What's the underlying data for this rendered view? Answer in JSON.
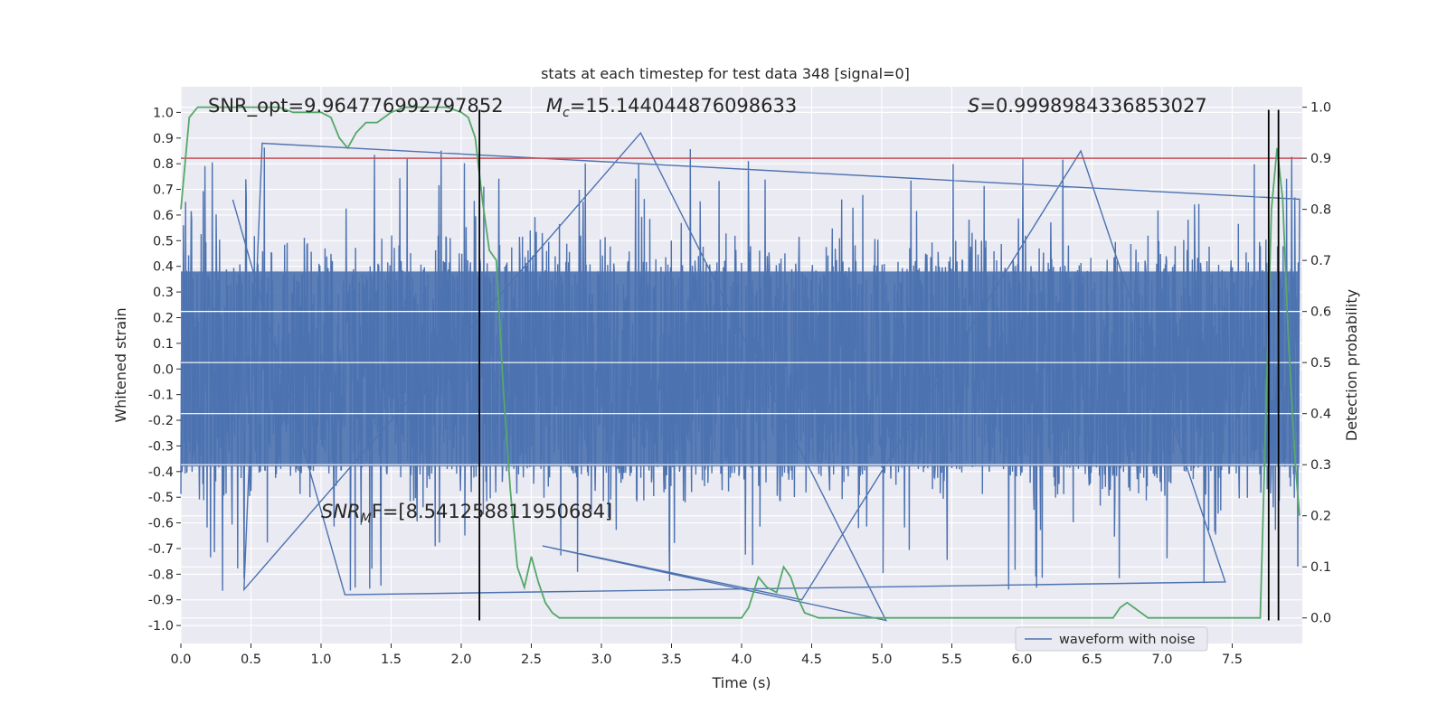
{
  "chart_data": {
    "type": "line",
    "title": "stats at each timestep for test data 348 [signal=0]",
    "xlabel": "Time (s)",
    "ylabel": "Whitened strain",
    "ylabel_right": "Detection probability",
    "xlim": [
      0.0,
      8.0
    ],
    "ylim": [
      -1.07,
      1.1
    ],
    "ylim_right": [
      -0.05,
      1.04
    ],
    "x_ticks": [
      "0.0",
      "0.5",
      "1.0",
      "1.5",
      "2.0",
      "2.5",
      "3.0",
      "3.5",
      "4.0",
      "4.5",
      "5.0",
      "5.5",
      "6.0",
      "6.5",
      "7.0",
      "7.5"
    ],
    "x_tick_values": [
      0.0,
      0.5,
      1.0,
      1.5,
      2.0,
      2.5,
      3.0,
      3.5,
      4.0,
      4.5,
      5.0,
      5.5,
      6.0,
      6.5,
      7.0,
      7.5
    ],
    "y_ticks": [
      "1.0",
      "0.9",
      "0.8",
      "0.7",
      "0.6",
      "0.5",
      "0.4",
      "0.3",
      "0.2",
      "0.1",
      "0.0",
      "-0.1",
      "-0.2",
      "-0.3",
      "-0.4",
      "-0.5",
      "-0.6",
      "-0.7",
      "-0.8",
      "-0.9",
      "-1.0"
    ],
    "y_tick_values": [
      1.0,
      0.9,
      0.8,
      0.7,
      0.6,
      0.5,
      0.4,
      0.3,
      0.2,
      0.1,
      0.0,
      -0.1,
      -0.2,
      -0.3,
      -0.4,
      -0.5,
      -0.6,
      -0.7,
      -0.8,
      -0.9,
      -1.0
    ],
    "y_ticks_right": [
      "1.0",
      "0.9",
      "0.8",
      "0.7",
      "0.6",
      "0.5",
      "0.4",
      "0.3",
      "0.2",
      "0.1",
      "0.0"
    ],
    "y_tick_values_right": [
      1.0,
      0.9,
      0.8,
      0.7,
      0.6,
      0.5,
      0.4,
      0.3,
      0.2,
      0.1,
      0.0
    ],
    "grid": true,
    "legend": {
      "placement": "lower-right",
      "entries": [
        "waveform with noise"
      ]
    },
    "series": [
      {
        "name": "waveform with noise",
        "axis": "left",
        "color": "#4c72b0",
        "rendering": "dense noisy strain, core band roughly -0.4 to 0.4, spikes up to about 0.9 and down to about -0.95"
      },
      {
        "axis": "right",
        "color": "#55a868",
        "x": [
          0.0,
          0.06,
          0.12,
          0.2,
          0.3,
          0.4,
          0.5,
          0.6,
          0.7,
          0.8,
          0.9,
          1.0,
          1.07,
          1.13,
          1.19,
          1.25,
          1.32,
          1.4,
          1.5,
          1.6,
          1.7,
          1.8,
          1.9,
          2.0,
          2.05,
          2.1,
          2.15,
          2.2,
          2.25,
          2.3,
          2.35,
          2.4,
          2.45,
          2.5,
          2.55,
          2.6,
          2.65,
          2.7,
          2.8,
          2.9,
          3.0,
          3.1,
          3.2,
          3.3,
          3.4,
          3.5,
          3.6,
          3.7,
          3.8,
          3.9,
          4.0,
          4.05,
          4.12,
          4.18,
          4.25,
          4.3,
          4.35,
          4.4,
          4.45,
          4.55,
          4.65,
          4.8,
          5.0,
          5.2,
          5.5,
          5.8,
          5.9,
          6.0,
          6.1,
          6.2,
          6.3,
          6.4,
          6.5,
          6.6,
          6.65,
          6.7,
          6.75,
          6.8,
          6.85,
          6.9,
          7.0,
          7.1,
          7.2,
          7.3,
          7.4,
          7.5,
          7.55,
          7.6,
          7.65,
          7.7,
          7.73,
          7.78,
          7.82,
          7.86,
          7.9,
          7.95,
          7.98
        ],
        "values": [
          0.8,
          0.98,
          1.0,
          1.0,
          1.0,
          1.0,
          1.0,
          1.0,
          1.0,
          0.99,
          0.99,
          0.99,
          0.98,
          0.94,
          0.92,
          0.95,
          0.97,
          0.97,
          0.99,
          1.0,
          1.0,
          1.0,
          1.0,
          0.99,
          0.98,
          0.94,
          0.82,
          0.72,
          0.7,
          0.45,
          0.25,
          0.1,
          0.06,
          0.12,
          0.07,
          0.03,
          0.01,
          0.0,
          0.0,
          0.0,
          0.0,
          0.0,
          0.0,
          0.0,
          0.0,
          0.0,
          0.0,
          0.0,
          0.0,
          0.0,
          0.0,
          0.02,
          0.08,
          0.06,
          0.05,
          0.1,
          0.08,
          0.04,
          0.01,
          0.0,
          0.0,
          0.0,
          0.0,
          0.0,
          0.0,
          0.0,
          0.0,
          0.0,
          0.0,
          0.0,
          0.0,
          0.0,
          0.0,
          0.0,
          0.0,
          0.02,
          0.03,
          0.02,
          0.01,
          0.0,
          0.0,
          0.0,
          0.0,
          0.0,
          0.0,
          0.0,
          0.0,
          0.0,
          0.0,
          0.0,
          0.3,
          0.8,
          0.92,
          0.82,
          0.55,
          0.3,
          0.2
        ]
      }
    ],
    "threshold": {
      "axis": "right",
      "value": 0.9,
      "color": "#c44e52"
    },
    "vlines": {
      "x": [
        2.13,
        7.76,
        7.83
      ],
      "color": "#000000",
      "ymin": -0.98,
      "ymax": 1.01
    },
    "annotations": {
      "snr_opt": "SNR_opt=9.964776992797852",
      "mc_symbol": "M",
      "mc_sub": "c",
      "mc_value": "=15.144044876098633",
      "s_symbol": "S",
      "s_value": "=0.9998984336853027",
      "snr_mf_symbol": "SNR",
      "snr_mf_sub": "M",
      "snr_mf_value": "F=[8.541258811950684]"
    }
  }
}
